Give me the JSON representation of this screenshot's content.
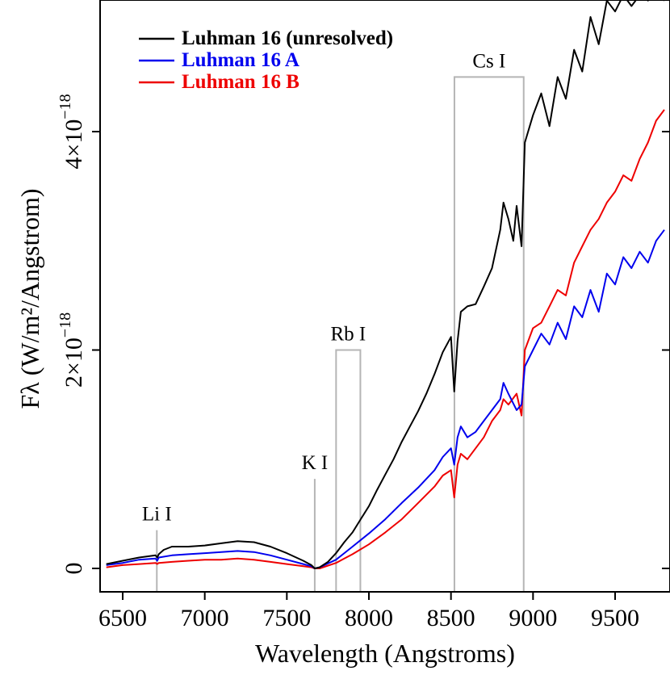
{
  "chart_data": {
    "type": "line",
    "xlabel": "Wavelength (Angstroms)",
    "ylabel": "Fλ (W/m²/Angstrom)",
    "xlim": [
      6380,
      9820
    ],
    "ylim": [
      -0.22,
      5.2
    ],
    "y_unit_exponent": -18,
    "x_ticks": [
      {
        "value": 6500,
        "label": "6500"
      },
      {
        "value": 7000,
        "label": "7000"
      },
      {
        "value": 7500,
        "label": "7500"
      },
      {
        "value": 8000,
        "label": "8000"
      },
      {
        "value": 8500,
        "label": "8500"
      },
      {
        "value": 9000,
        "label": "9000"
      },
      {
        "value": 9500,
        "label": "9500"
      }
    ],
    "y_ticks": [
      {
        "value": 0,
        "mantissa": "0",
        "exponent": ""
      },
      {
        "value": 2,
        "mantissa": "2×10",
        "exponent": "−18"
      },
      {
        "value": 4,
        "mantissa": "4×10",
        "exponent": "−18"
      }
    ],
    "legend": {
      "position": "top-left",
      "entries": [
        {
          "label": "Luhman 16 (unresolved)",
          "color": "#000000"
        },
        {
          "label": "Luhman 16 A",
          "color": "#0000ee"
        },
        {
          "label": "Luhman 16 B",
          "color": "#ee0000"
        }
      ]
    },
    "series": [
      {
        "name": "Luhman 16 (unresolved)",
        "color": "#000000",
        "x": [
          6400,
          6500,
          6600,
          6700,
          6710,
          6720,
          6750,
          6800,
          6900,
          7000,
          7100,
          7200,
          7300,
          7400,
          7500,
          7600,
          7650,
          7670,
          7700,
          7750,
          7800,
          7850,
          7900,
          7950,
          8000,
          8050,
          8100,
          8150,
          8200,
          8250,
          8300,
          8350,
          8400,
          8450,
          8500,
          8520,
          8540,
          8560,
          8600,
          8650,
          8700,
          8750,
          8800,
          8820,
          8850,
          8880,
          8900,
          8930,
          8950,
          9000,
          9050,
          9100,
          9150,
          9200,
          9250,
          9300,
          9350,
          9400,
          9450,
          9500,
          9550,
          9600,
          9650,
          9700,
          9750,
          9800
        ],
        "y": [
          0.04,
          0.07,
          0.1,
          0.12,
          0.1,
          0.13,
          0.17,
          0.2,
          0.2,
          0.21,
          0.23,
          0.25,
          0.24,
          0.2,
          0.14,
          0.07,
          0.03,
          0.0,
          0.01,
          0.06,
          0.14,
          0.24,
          0.33,
          0.45,
          0.57,
          0.72,
          0.86,
          1.0,
          1.16,
          1.3,
          1.44,
          1.6,
          1.78,
          1.98,
          2.12,
          1.62,
          2.08,
          2.35,
          2.4,
          2.42,
          2.58,
          2.75,
          3.1,
          3.35,
          3.2,
          3.0,
          3.32,
          2.95,
          3.9,
          4.15,
          4.35,
          4.05,
          4.5,
          4.3,
          4.75,
          4.55,
          5.05,
          4.8,
          5.2,
          5.1,
          5.25,
          5.15,
          5.25,
          5.2,
          5.25,
          5.2
        ]
      },
      {
        "name": "Luhman 16 A",
        "color": "#0000ee",
        "x": [
          6400,
          6500,
          6600,
          6700,
          6710,
          6720,
          6800,
          6900,
          7000,
          7100,
          7200,
          7300,
          7400,
          7500,
          7600,
          7650,
          7670,
          7700,
          7800,
          7850,
          7900,
          8000,
          8100,
          8200,
          8300,
          8400,
          8450,
          8500,
          8520,
          8540,
          8560,
          8600,
          8650,
          8700,
          8750,
          8800,
          8820,
          8850,
          8900,
          8930,
          8950,
          9000,
          9050,
          9100,
          9150,
          9200,
          9250,
          9300,
          9350,
          9400,
          9450,
          9500,
          9550,
          9600,
          9650,
          9700,
          9750,
          9800
        ],
        "y": [
          0.03,
          0.05,
          0.08,
          0.09,
          0.07,
          0.1,
          0.12,
          0.13,
          0.14,
          0.15,
          0.16,
          0.15,
          0.12,
          0.08,
          0.04,
          0.02,
          0.0,
          0.01,
          0.08,
          0.14,
          0.2,
          0.32,
          0.45,
          0.6,
          0.74,
          0.9,
          1.02,
          1.1,
          0.95,
          1.2,
          1.3,
          1.2,
          1.25,
          1.35,
          1.45,
          1.55,
          1.7,
          1.6,
          1.45,
          1.5,
          1.85,
          2.0,
          2.15,
          2.05,
          2.25,
          2.1,
          2.4,
          2.3,
          2.55,
          2.35,
          2.7,
          2.6,
          2.85,
          2.75,
          2.9,
          2.8,
          3.0,
          3.1
        ]
      },
      {
        "name": "Luhman 16 B",
        "color": "#ee0000",
        "x": [
          6400,
          6500,
          6600,
          6700,
          6710,
          6720,
          6800,
          6900,
          7000,
          7100,
          7200,
          7300,
          7400,
          7500,
          7600,
          7650,
          7670,
          7700,
          7800,
          7850,
          7900,
          8000,
          8100,
          8200,
          8300,
          8400,
          8450,
          8500,
          8520,
          8540,
          8560,
          8600,
          8650,
          8700,
          8750,
          8800,
          8820,
          8850,
          8900,
          8930,
          8950,
          9000,
          9050,
          9100,
          9150,
          9200,
          9250,
          9300,
          9350,
          9400,
          9450,
          9500,
          9550,
          9600,
          9650,
          9700,
          9750,
          9800
        ],
        "y": [
          0.01,
          0.03,
          0.04,
          0.05,
          0.04,
          0.05,
          0.06,
          0.07,
          0.08,
          0.08,
          0.09,
          0.08,
          0.06,
          0.04,
          0.02,
          0.01,
          0.0,
          0.0,
          0.05,
          0.09,
          0.13,
          0.22,
          0.33,
          0.45,
          0.6,
          0.75,
          0.85,
          0.9,
          0.65,
          0.95,
          1.05,
          1.0,
          1.1,
          1.2,
          1.35,
          1.45,
          1.55,
          1.5,
          1.6,
          1.4,
          2.0,
          2.2,
          2.25,
          2.4,
          2.55,
          2.5,
          2.8,
          2.95,
          3.1,
          3.2,
          3.35,
          3.45,
          3.6,
          3.55,
          3.75,
          3.9,
          4.1,
          4.2
        ]
      }
    ],
    "annotations": [
      {
        "label": "Li I",
        "kind": "line",
        "x": 6708,
        "y_top": 0.35
      },
      {
        "label": "K I",
        "kind": "line",
        "x": 7670,
        "y_top": 0.82
      },
      {
        "label": "Rb I",
        "kind": "box",
        "x1": 7800,
        "x2": 7948,
        "y_top": 2.0
      },
      {
        "label": "Cs I",
        "kind": "box",
        "x1": 8521,
        "x2": 8943,
        "y_top": 4.5
      }
    ]
  }
}
